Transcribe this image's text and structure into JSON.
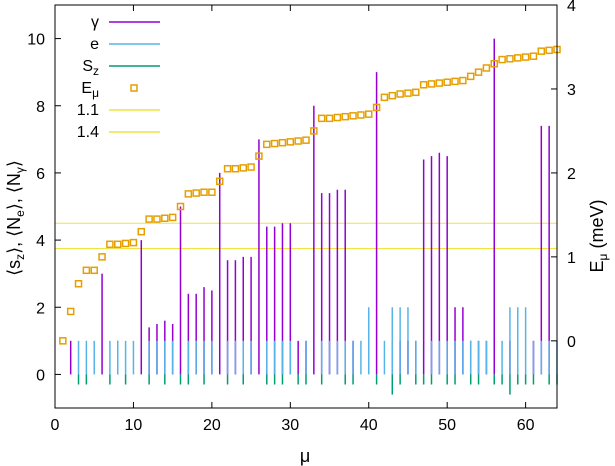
{
  "chart_data": {
    "type": "mixed",
    "title": "",
    "xlabel": "μ",
    "ylabel_left": "⟨s_z⟩, ⟨N_e⟩, ⟨N_γ⟩",
    "ylabel_right": "E_μ (meV)",
    "xlim": [
      0,
      64
    ],
    "ylim_left": [
      -1,
      11
    ],
    "ylim_right": [
      -0.8,
      4
    ],
    "x_ticks": [
      0,
      10,
      20,
      30,
      40,
      50,
      60
    ],
    "y_ticks_left": [
      0,
      2,
      4,
      6,
      8,
      10
    ],
    "y_ticks_right": [
      0,
      1,
      2,
      3,
      4
    ],
    "legend": [
      {
        "key": "gamma",
        "label": "γ"
      },
      {
        "key": "ne",
        "label": "e"
      },
      {
        "key": "sz",
        "label": "S_z"
      },
      {
        "key": "emu",
        "label": "E_μ"
      },
      {
        "key": "h11",
        "label": "1.1"
      },
      {
        "key": "h14",
        "label": "1.4"
      }
    ],
    "colors": {
      "gamma": "#9400d3",
      "ne": "#56b4e9",
      "sz": "#009e73",
      "emu": "#e69f00",
      "hline": "#f0e442"
    },
    "series": [
      {
        "name": "γ",
        "type": "impulse",
        "x": [
          2,
          6,
          8,
          11,
          12,
          13,
          14,
          15,
          16,
          17,
          18,
          19,
          20,
          21,
          22,
          23,
          24,
          25,
          26,
          27,
          28,
          29,
          30,
          31,
          32,
          33,
          34,
          35,
          36,
          37,
          38,
          41,
          43,
          44,
          45,
          46,
          47,
          48,
          49,
          50,
          51,
          52,
          53,
          54,
          55,
          56,
          58,
          61,
          62,
          63
        ],
        "values": [
          1,
          3,
          1,
          4,
          1.4,
          1.5,
          1.6,
          1.5,
          5,
          2.4,
          2.4,
          2.6,
          2.5,
          6,
          3.4,
          3.4,
          3.5,
          3.5,
          7,
          4.4,
          4.4,
          4.5,
          4.5,
          1,
          1,
          8,
          5.4,
          5.4,
          5.5,
          5.5,
          1,
          9,
          1,
          1,
          1,
          1,
          6.4,
          6.5,
          6.6,
          6.5,
          2,
          2,
          1,
          1,
          1,
          10,
          1,
          1,
          7.4,
          7.4
        ]
      },
      {
        "name": "e",
        "type": "impulse",
        "x": [
          3,
          4,
          5,
          7,
          8,
          9,
          10,
          12,
          13,
          14,
          15,
          17,
          18,
          19,
          20,
          22,
          23,
          24,
          25,
          27,
          28,
          29,
          30,
          32,
          34,
          35,
          36,
          37,
          38,
          39,
          40,
          42,
          43,
          44,
          45,
          46,
          48,
          49,
          50,
          51,
          52,
          53,
          54,
          55,
          57,
          58,
          59,
          60,
          61,
          62,
          63,
          64
        ],
        "values": [
          1,
          1,
          1,
          1,
          1,
          1,
          1,
          1,
          1,
          1,
          1,
          1,
          1,
          1,
          1,
          1,
          1,
          1,
          1,
          1,
          1,
          1,
          1,
          1,
          1,
          1,
          1,
          1,
          1,
          1,
          2,
          1,
          2,
          2,
          2,
          1,
          1,
          1,
          1,
          1,
          1,
          1,
          1,
          1,
          1,
          2,
          2,
          2,
          1,
          1,
          1,
          1
        ]
      },
      {
        "name": "S_z",
        "type": "impulse",
        "x": [
          3,
          4,
          7,
          9,
          12,
          14,
          16,
          17,
          19,
          22,
          24,
          27,
          28,
          29,
          31,
          32,
          34,
          37,
          38,
          41,
          43,
          44,
          46,
          47,
          48,
          50,
          51,
          53,
          54,
          56,
          57,
          58,
          59,
          60,
          61,
          63,
          64
        ],
        "values": [
          -0.3,
          -0.3,
          -0.3,
          -0.3,
          -0.3,
          -0.3,
          -0.3,
          -0.3,
          -0.3,
          -0.3,
          -0.3,
          -0.3,
          -0.3,
          -0.3,
          -0.3,
          -0.3,
          -0.3,
          -0.3,
          -0.3,
          -0.3,
          -0.6,
          -0.3,
          -0.3,
          -0.3,
          -0.3,
          -0.3,
          -0.3,
          -0.3,
          -0.3,
          -0.3,
          -0.3,
          -0.6,
          -0.3,
          -0.3,
          -0.3,
          -0.3,
          -0.3
        ]
      },
      {
        "name": "E_μ",
        "type": "scatter",
        "axis": "right",
        "x": [
          1,
          2,
          3,
          4,
          5,
          6,
          7,
          8,
          9,
          10,
          11,
          12,
          13,
          14,
          15,
          16,
          17,
          18,
          19,
          20,
          21,
          22,
          23,
          24,
          25,
          26,
          27,
          28,
          29,
          30,
          31,
          32,
          33,
          34,
          35,
          36,
          37,
          38,
          39,
          40,
          41,
          42,
          43,
          44,
          45,
          46,
          47,
          48,
          49,
          50,
          51,
          52,
          53,
          54,
          55,
          56,
          57,
          58,
          59,
          60,
          61,
          62,
          63,
          64
        ],
        "values": [
          0.0,
          0.35,
          0.68,
          0.84,
          0.84,
          1.0,
          1.15,
          1.15,
          1.16,
          1.17,
          1.3,
          1.45,
          1.45,
          1.46,
          1.47,
          1.6,
          1.75,
          1.76,
          1.77,
          1.77,
          1.9,
          2.05,
          2.05,
          2.06,
          2.07,
          2.2,
          2.34,
          2.35,
          2.36,
          2.37,
          2.38,
          2.39,
          2.5,
          2.65,
          2.65,
          2.66,
          2.67,
          2.68,
          2.69,
          2.7,
          2.78,
          2.9,
          2.92,
          2.94,
          2.95,
          2.96,
          3.05,
          3.06,
          3.07,
          3.08,
          3.09,
          3.1,
          3.15,
          3.2,
          3.25,
          3.3,
          3.35,
          3.36,
          3.37,
          3.38,
          3.39,
          3.45,
          3.46,
          3.47
        ]
      },
      {
        "name": "1.1",
        "type": "hline",
        "axis": "right",
        "value": 1.1
      },
      {
        "name": "1.4",
        "type": "hline",
        "axis": "right",
        "value": 1.4
      }
    ]
  }
}
